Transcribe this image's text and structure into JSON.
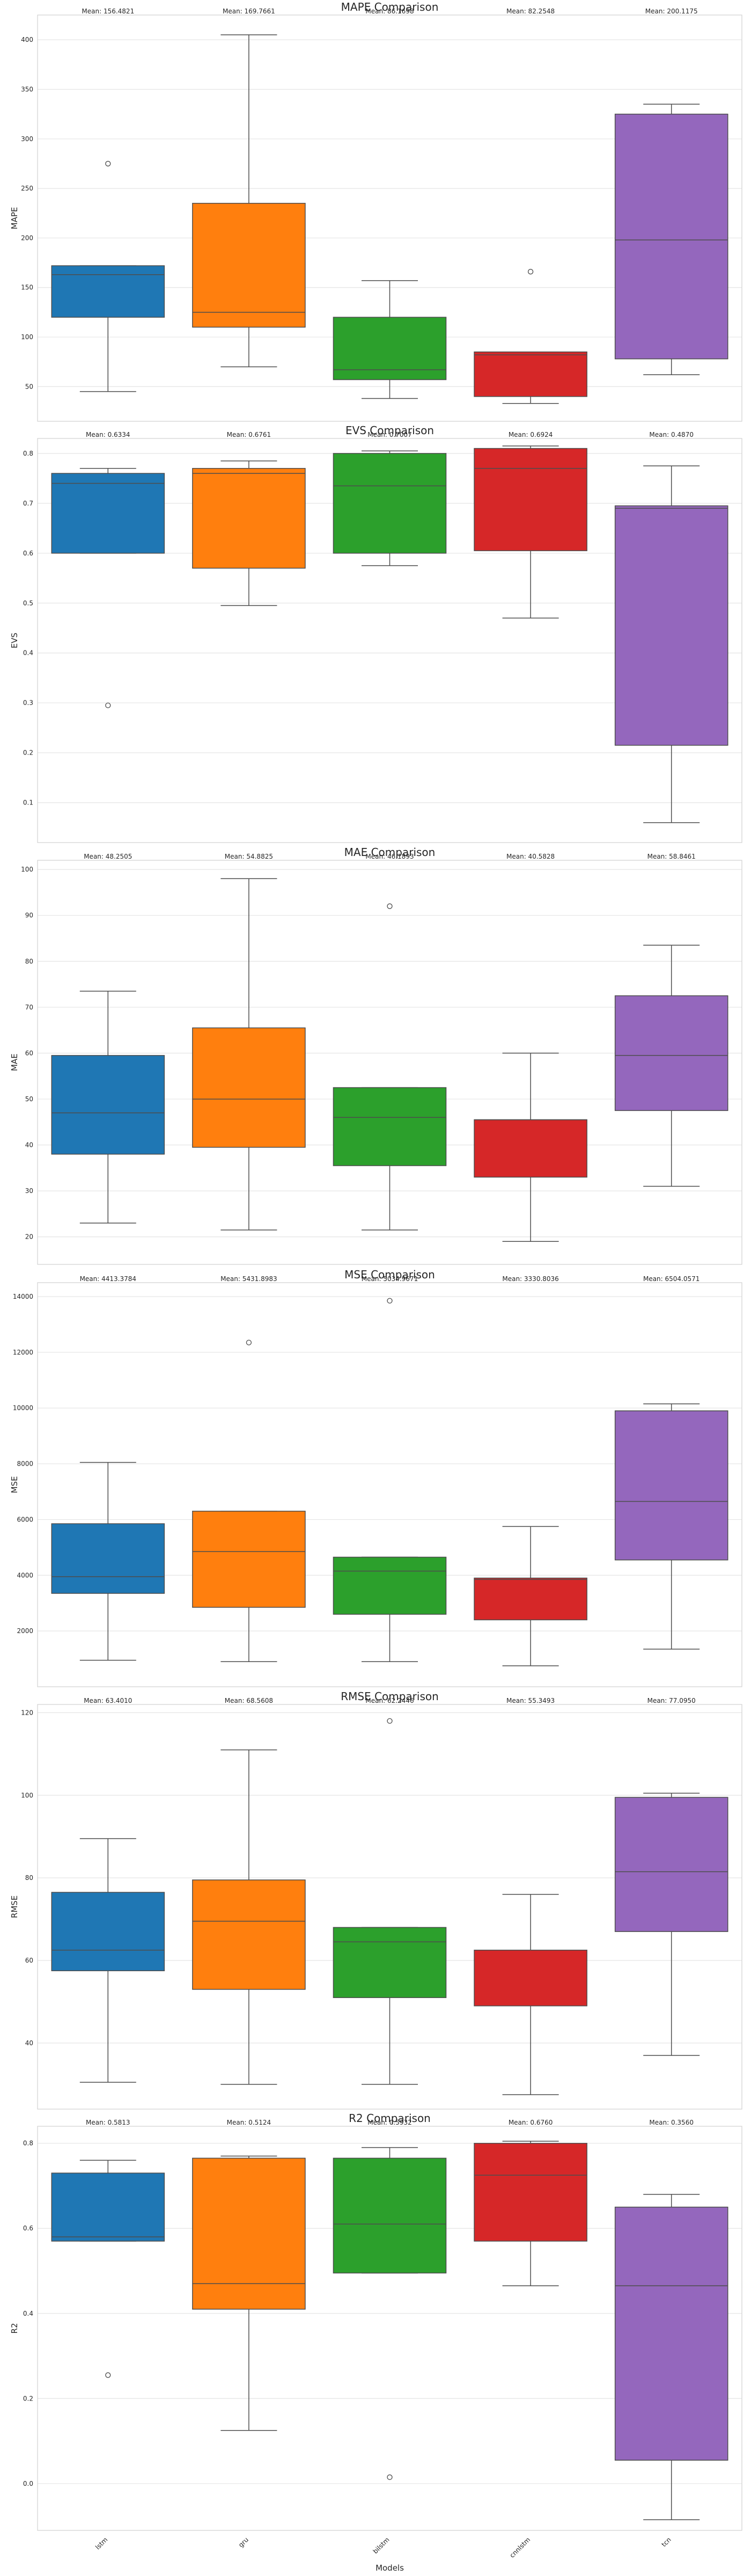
{
  "chart_data": [
    {
      "type": "box",
      "title": "MAPE Comparison",
      "ylabel": "MAPE",
      "ylim": [
        15,
        425
      ],
      "yticks": [
        50,
        100,
        150,
        200,
        250,
        300,
        350,
        400
      ],
      "mean_labels": [
        "Mean: 156.4821",
        "Mean: 169.7661",
        "Mean: 86.1698",
        "Mean: 82.2548",
        "Mean: 200.1175"
      ],
      "boxes": [
        {
          "whislo": 45,
          "q1": 120,
          "med": 163,
          "q3": 172,
          "whishi": 172,
          "fliers": [
            275
          ]
        },
        {
          "whislo": 70,
          "q1": 110,
          "med": 125,
          "q3": 235,
          "whishi": 405,
          "fliers": []
        },
        {
          "whislo": 38,
          "q1": 57,
          "med": 67,
          "q3": 120,
          "whishi": 157,
          "fliers": []
        },
        {
          "whislo": 33,
          "q1": 40,
          "med": 82,
          "q3": 85,
          "whishi": 85,
          "fliers": [
            166
          ]
        },
        {
          "whislo": 62,
          "q1": 78,
          "med": 198,
          "q3": 325,
          "whishi": 335,
          "fliers": []
        }
      ]
    },
    {
      "type": "box",
      "title": "EVS Comparison",
      "ylabel": "EVS",
      "ylim": [
        0.02,
        0.83
      ],
      "yticks": [
        0.1,
        0.2,
        0.3,
        0.4,
        0.5,
        0.6,
        0.7,
        0.8
      ],
      "mean_labels": [
        "Mean: 0.6334",
        "Mean: 0.6761",
        "Mean: 0.7007",
        "Mean: 0.6924",
        "Mean: 0.4870"
      ],
      "boxes": [
        {
          "whislo": 0.6,
          "q1": 0.6,
          "med": 0.74,
          "q3": 0.76,
          "whishi": 0.77,
          "fliers": [
            0.295
          ]
        },
        {
          "whislo": 0.495,
          "q1": 0.57,
          "med": 0.76,
          "q3": 0.77,
          "whishi": 0.785,
          "fliers": []
        },
        {
          "whislo": 0.575,
          "q1": 0.6,
          "med": 0.735,
          "q3": 0.8,
          "whishi": 0.805,
          "fliers": []
        },
        {
          "whislo": 0.47,
          "q1": 0.605,
          "med": 0.77,
          "q3": 0.81,
          "whishi": 0.815,
          "fliers": []
        },
        {
          "whislo": 0.06,
          "q1": 0.215,
          "med": 0.69,
          "q3": 0.695,
          "whishi": 0.775,
          "fliers": []
        }
      ]
    },
    {
      "type": "box",
      "title": "MAE Comparison",
      "ylabel": "MAE",
      "ylim": [
        14,
        102
      ],
      "yticks": [
        20,
        30,
        40,
        50,
        60,
        70,
        80,
        90,
        100
      ],
      "mean_labels": [
        "Mean: 48.2505",
        "Mean: 54.8825",
        "Mean: 46.1893",
        "Mean: 40.5828",
        "Mean: 58.8461"
      ],
      "boxes": [
        {
          "whislo": 23,
          "q1": 38,
          "med": 47,
          "q3": 59.5,
          "whishi": 73.5,
          "fliers": []
        },
        {
          "whislo": 21.5,
          "q1": 39.5,
          "med": 50,
          "q3": 65.5,
          "whishi": 98,
          "fliers": []
        },
        {
          "whislo": 21.5,
          "q1": 35.5,
          "med": 46,
          "q3": 52.5,
          "whishi": 52.5,
          "fliers": [
            92
          ]
        },
        {
          "whislo": 19,
          "q1": 33,
          "med": 45.5,
          "q3": 45.5,
          "whishi": 60,
          "fliers": []
        },
        {
          "whislo": 31,
          "q1": 47.5,
          "med": 59.5,
          "q3": 72.5,
          "whishi": 83.5,
          "fliers": []
        }
      ]
    },
    {
      "type": "box",
      "title": "MSE Comparison",
      "ylabel": "MSE",
      "ylim": [
        0,
        14500
      ],
      "yticks": [
        2000,
        4000,
        6000,
        8000,
        10000,
        12000,
        14000
      ],
      "mean_labels": [
        "Mean: 4413.3784",
        "Mean: 5431.8983",
        "Mean: 5034.9671",
        "Mean: 3330.8036",
        "Mean: 6504.0571"
      ],
      "boxes": [
        {
          "whislo": 950,
          "q1": 3350,
          "med": 3950,
          "q3": 5850,
          "whishi": 8050,
          "fliers": []
        },
        {
          "whislo": 900,
          "q1": 2850,
          "med": 4850,
          "q3": 6300,
          "whishi": 6300,
          "fliers": [
            12350
          ]
        },
        {
          "whislo": 900,
          "q1": 2600,
          "med": 4150,
          "q3": 4650,
          "whishi": 4650,
          "fliers": [
            13850
          ]
        },
        {
          "whislo": 750,
          "q1": 2400,
          "med": 3850,
          "q3": 3900,
          "whishi": 5750,
          "fliers": []
        },
        {
          "whislo": 1350,
          "q1": 4550,
          "med": 6650,
          "q3": 9900,
          "whishi": 10150,
          "fliers": []
        }
      ]
    },
    {
      "type": "box",
      "title": "RMSE Comparison",
      "ylabel": "RMSE",
      "ylim": [
        24,
        122
      ],
      "yticks": [
        40,
        60,
        80,
        100,
        120
      ],
      "mean_labels": [
        "Mean: 63.4010",
        "Mean: 68.5608",
        "Mean: 62.2446",
        "Mean: 55.3493",
        "Mean: 77.0950"
      ],
      "boxes": [
        {
          "whislo": 30.5,
          "q1": 57.5,
          "med": 62.5,
          "q3": 76.5,
          "whishi": 89.5,
          "fliers": []
        },
        {
          "whislo": 30,
          "q1": 53,
          "med": 69.5,
          "q3": 79.5,
          "whishi": 111,
          "fliers": []
        },
        {
          "whislo": 30,
          "q1": 51,
          "med": 64.5,
          "q3": 68,
          "whishi": 68,
          "fliers": [
            118
          ]
        },
        {
          "whislo": 27.5,
          "q1": 49,
          "med": 62.5,
          "q3": 62.5,
          "whishi": 76,
          "fliers": []
        },
        {
          "whislo": 37,
          "q1": 67,
          "med": 81.5,
          "q3": 99.5,
          "whishi": 100.5,
          "fliers": []
        }
      ]
    },
    {
      "type": "box",
      "title": "R2 Comparison",
      "ylabel": "R2",
      "ylim": [
        -0.11,
        0.84
      ],
      "yticks": [
        0.0,
        0.2,
        0.4,
        0.6,
        0.8
      ],
      "mean_labels": [
        "Mean: 0.5813",
        "Mean: 0.5124",
        "Mean: 0.5932",
        "Mean: 0.6760",
        "Mean: 0.3560"
      ],
      "boxes": [
        {
          "whislo": 0.57,
          "q1": 0.57,
          "med": 0.58,
          "q3": 0.73,
          "whishi": 0.76,
          "fliers": [
            0.255
          ]
        },
        {
          "whislo": 0.125,
          "q1": 0.41,
          "med": 0.47,
          "q3": 0.765,
          "whishi": 0.77,
          "fliers": []
        },
        {
          "whislo": 0.495,
          "q1": 0.495,
          "med": 0.61,
          "q3": 0.765,
          "whishi": 0.79,
          "fliers": [
            0.015
          ]
        },
        {
          "whislo": 0.465,
          "q1": 0.57,
          "med": 0.725,
          "q3": 0.8,
          "whishi": 0.805,
          "fliers": []
        },
        {
          "whislo": -0.085,
          "q1": 0.055,
          "med": 0.465,
          "q3": 0.65,
          "whishi": 0.68,
          "fliers": []
        }
      ]
    }
  ],
  "categories": [
    "lstm",
    "gru",
    "bilstm",
    "cnnlstm",
    "tcn"
  ],
  "xlabel": "Models",
  "colors": [
    "#1f77b4",
    "#ff7f0e",
    "#2ca02c",
    "#d62728",
    "#9467bd"
  ],
  "grid": true
}
